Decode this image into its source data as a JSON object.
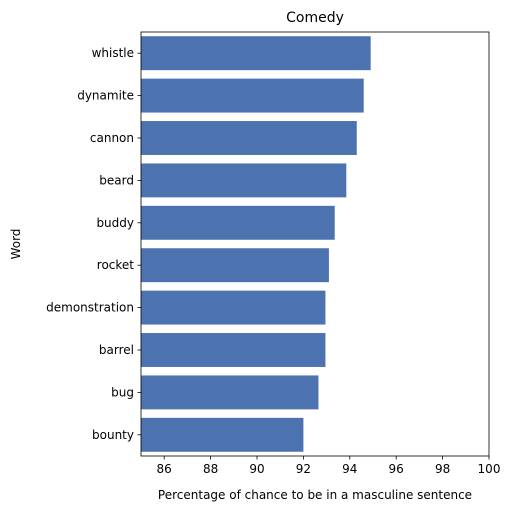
{
  "chart_data": {
    "type": "bar",
    "orientation": "horizontal",
    "title": "Comedy",
    "xlabel": "Percentage of chance to be in a masculine sentence",
    "ylabel": "Word",
    "categories": [
      "whistle",
      "dynamite",
      "cannon",
      "beard",
      "buddy",
      "rocket",
      "demonstration",
      "barrel",
      "bug",
      "bounty"
    ],
    "values": [
      94.9,
      94.6,
      94.3,
      93.85,
      93.35,
      93.1,
      92.95,
      92.95,
      92.65,
      92.0
    ],
    "xlim": [
      85,
      100
    ],
    "xticks": [
      86,
      88,
      90,
      92,
      94,
      96,
      98,
      100
    ],
    "grid": false,
    "bar_color": "#4c72b0"
  }
}
